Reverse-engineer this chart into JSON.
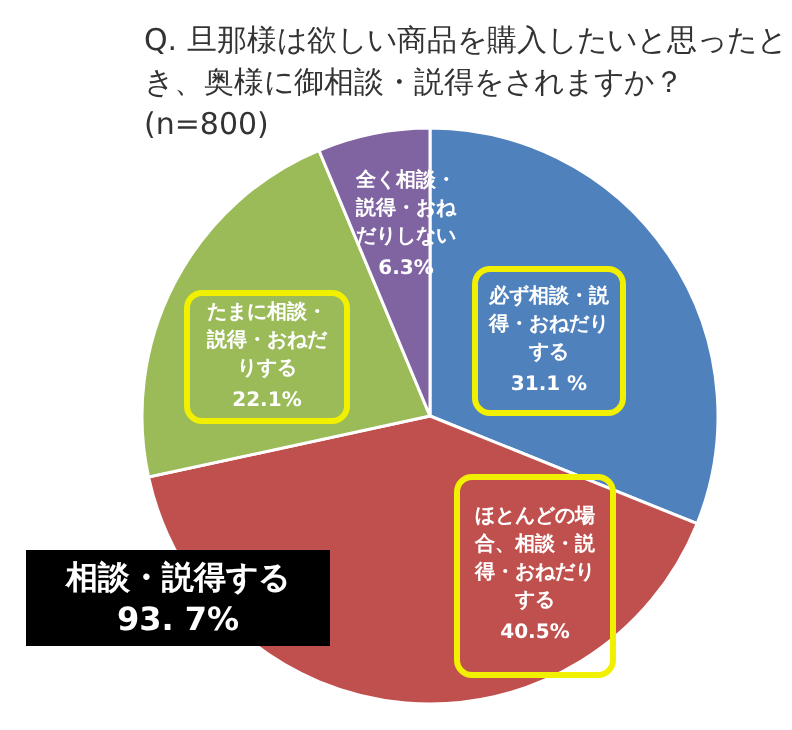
{
  "chart_data": {
    "type": "pie",
    "title": "Q.  旦那様は欲しい商品を購入したいと思ったとき、奥様に御相談・説得をされますか？(n=800)",
    "categories": [
      "必ず相談・説得・おねだりする",
      "ほとんどの場合、相談・説得・おねだりする",
      "たまに相談・説得・おねだりする",
      "全く相談・説得・おねだりしない"
    ],
    "values": [
      31.1,
      40.5,
      22.1,
      6.3
    ],
    "value_labels": [
      "31.1 %",
      "40.5%",
      "22.1%",
      "6.3%"
    ],
    "colors": [
      "#4f81bd",
      "#c0504d",
      "#9bbb59",
      "#8064a2"
    ],
    "annotations": [
      "相談・説得する 93. 7%"
    ]
  }
}
